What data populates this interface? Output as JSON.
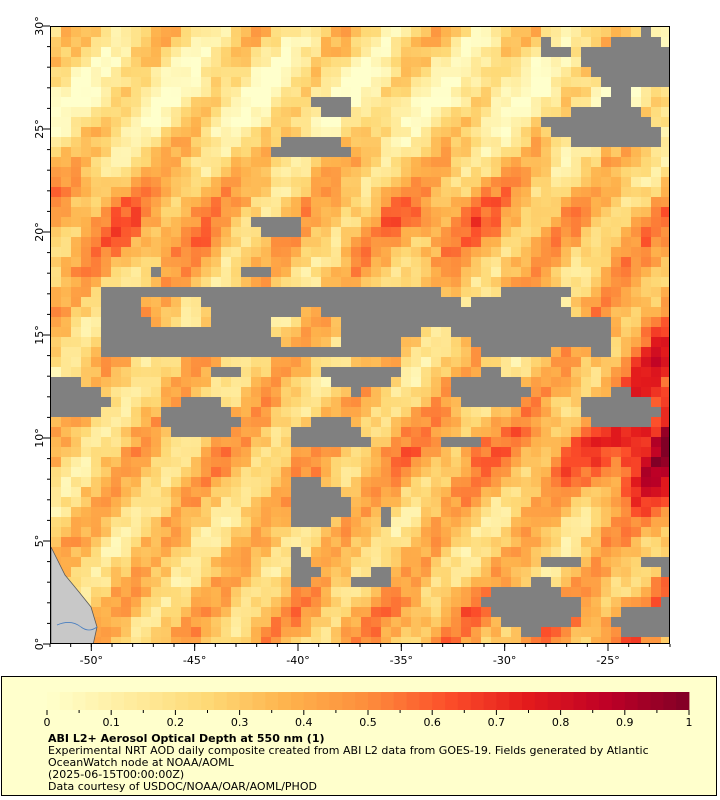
{
  "map": {
    "lon_range": [
      -52,
      -22
    ],
    "lat_range": [
      0,
      30
    ],
    "x_ticks": [
      {
        "value": -50,
        "label": "-50°"
      },
      {
        "value": -45,
        "label": "-45°"
      },
      {
        "value": -40,
        "label": "-40°"
      },
      {
        "value": -35,
        "label": "-35°"
      },
      {
        "value": -30,
        "label": "-30°"
      },
      {
        "value": -25,
        "label": "-25°"
      }
    ],
    "y_ticks": [
      {
        "value": 0,
        "label": "0°"
      },
      {
        "value": 5,
        "label": "5°"
      },
      {
        "value": 10,
        "label": "10°"
      },
      {
        "value": 15,
        "label": "15°"
      },
      {
        "value": 20,
        "label": "20°"
      },
      {
        "value": 25,
        "label": "25°"
      },
      {
        "value": 30,
        "label": "30°"
      }
    ],
    "no_data_color": "#808080",
    "land_color": "#c8c8c8"
  },
  "legend": {
    "title": "ABI L2+ Aerosol Optical Depth at 550 nm (1)",
    "description": "Experimental NRT AOD daily composite created from ABI L2 data from GOES-19. Fields generated by Atlantic OceanWatch node at NOAA/AOML",
    "time": "(2025-06-15T00:00:00Z)",
    "credit": "Data courtesy of USDOC/NOAA/OAR/AOML/PHOD",
    "colorbar_range": [
      0,
      1
    ],
    "colorbar_labels": [
      {
        "value": 0,
        "label": "0"
      },
      {
        "value": 0.1,
        "label": "0.1"
      },
      {
        "value": 0.2,
        "label": "0.2"
      },
      {
        "value": 0.3,
        "label": "0.3"
      },
      {
        "value": 0.4,
        "label": "0.4"
      },
      {
        "value": 0.5,
        "label": "0.5"
      },
      {
        "value": 0.6,
        "label": "0.6"
      },
      {
        "value": 0.7,
        "label": "0.7"
      },
      {
        "value": 0.8,
        "label": "0.8"
      },
      {
        "value": 0.9,
        "label": "0.9"
      },
      {
        "value": 1,
        "label": "1"
      }
    ],
    "colormap": [
      "#ffffcc",
      "#ffeda0",
      "#fed976",
      "#feb24c",
      "#fd8d3c",
      "#fc4e2a",
      "#e31a1c",
      "#bd0026",
      "#800026"
    ]
  }
}
